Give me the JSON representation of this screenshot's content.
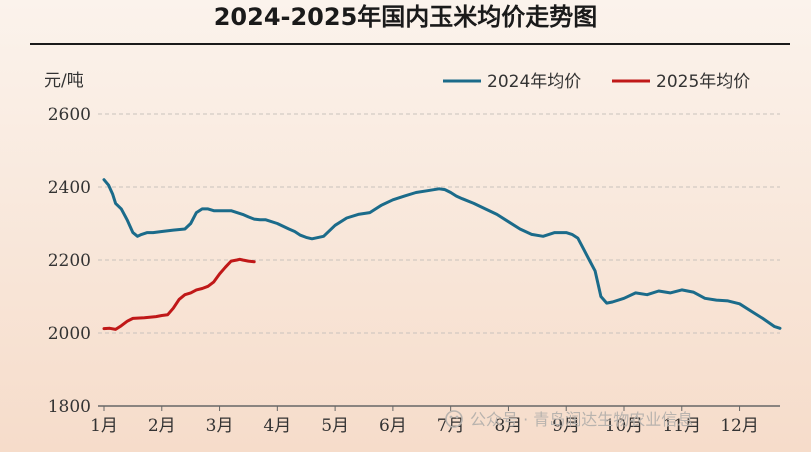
{
  "chart_data": {
    "type": "line",
    "title": "2024-2025年国内玉米均价走势图",
    "ylabel": "元/吨",
    "ylim": [
      1800,
      2600
    ],
    "yticks": [
      1800,
      2000,
      2200,
      2400,
      2600
    ],
    "xticks": [
      "1月",
      "2月",
      "3月",
      "4月",
      "5月",
      "6月",
      "7月",
      "8月",
      "9月",
      "10月",
      "11月",
      "12月"
    ],
    "xlim": [
      1,
      12.7
    ],
    "grid": true,
    "legend_position": "top-right",
    "series": [
      {
        "name": "2024年均价",
        "color": "#1b6b8a",
        "x": [
          1.0,
          1.08,
          1.15,
          1.2,
          1.3,
          1.4,
          1.5,
          1.58,
          1.65,
          1.75,
          1.85,
          2.0,
          2.2,
          2.4,
          2.5,
          2.6,
          2.7,
          2.8,
          2.9,
          3.0,
          3.2,
          3.4,
          3.5,
          3.6,
          3.7,
          3.8,
          4.0,
          4.2,
          4.3,
          4.4,
          4.5,
          4.6,
          4.8,
          5.0,
          5.2,
          5.4,
          5.6,
          5.8,
          6.0,
          6.2,
          6.4,
          6.6,
          6.8,
          6.9,
          7.0,
          7.1,
          7.2,
          7.4,
          7.6,
          7.8,
          8.0,
          8.2,
          8.4,
          8.6,
          8.8,
          9.0,
          9.1,
          9.2,
          9.3,
          9.4,
          9.5,
          9.6,
          9.7,
          9.8,
          10.0,
          10.2,
          10.4,
          10.6,
          10.8,
          11.0,
          11.2,
          11.4,
          11.6,
          11.8,
          12.0,
          12.2,
          12.4,
          12.6,
          12.7
        ],
        "values": [
          2420,
          2405,
          2380,
          2355,
          2340,
          2310,
          2275,
          2265,
          2270,
          2275,
          2275,
          2278,
          2282,
          2285,
          2300,
          2330,
          2340,
          2340,
          2335,
          2335,
          2335,
          2325,
          2318,
          2312,
          2310,
          2310,
          2300,
          2285,
          2278,
          2268,
          2262,
          2258,
          2265,
          2295,
          2315,
          2325,
          2330,
          2350,
          2365,
          2375,
          2385,
          2390,
          2395,
          2393,
          2385,
          2375,
          2368,
          2355,
          2340,
          2325,
          2305,
          2285,
          2270,
          2265,
          2275,
          2275,
          2270,
          2260,
          2230,
          2200,
          2170,
          2100,
          2082,
          2085,
          2095,
          2110,
          2105,
          2115,
          2110,
          2118,
          2112,
          2095,
          2090,
          2088,
          2080,
          2060,
          2040,
          2018,
          2013
        ]
      },
      {
        "name": "2025年均价",
        "color": "#c01818",
        "x": [
          1.0,
          1.1,
          1.2,
          1.3,
          1.4,
          1.5,
          1.7,
          1.9,
          2.0,
          2.1,
          2.2,
          2.3,
          2.4,
          2.5,
          2.6,
          2.7,
          2.8,
          2.9,
          3.0,
          3.1,
          3.2,
          3.3,
          3.35,
          3.4,
          3.5,
          3.6
        ],
        "values": [
          2012,
          2013,
          2010,
          2020,
          2032,
          2040,
          2042,
          2045,
          2048,
          2050,
          2068,
          2092,
          2105,
          2110,
          2118,
          2122,
          2128,
          2140,
          2162,
          2180,
          2197,
          2200,
          2202,
          2200,
          2197,
          2195
        ]
      }
    ]
  },
  "watermark": "公众号 · 青岛润达生物农业信息"
}
